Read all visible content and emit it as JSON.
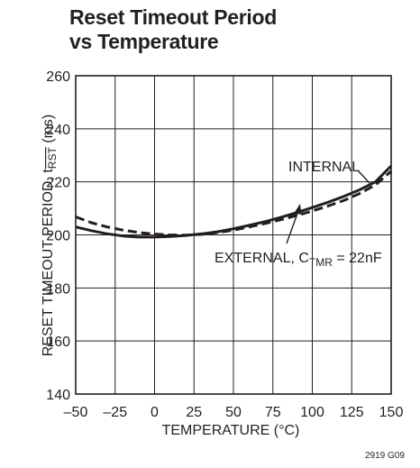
{
  "chart_data": {
    "type": "line",
    "title_line1": "Reset Timeout Period",
    "title_line2": "vs Temperature",
    "xlabel": "TEMPERATURE (°C)",
    "ylabel_prefix": "RESET TIMEOUT PERIOD, t",
    "ylabel_sub": "RST",
    "ylabel_suffix": " (ms)",
    "xlim": [
      -50,
      150
    ],
    "ylim": [
      140,
      260
    ],
    "x_ticks": [
      "–50",
      "–25",
      "0",
      "25",
      "50",
      "75",
      "100",
      "125",
      "150"
    ],
    "y_ticks": [
      "140",
      "160",
      "180",
      "200",
      "220",
      "240",
      "260"
    ],
    "grid": true,
    "legend": "none",
    "series": [
      {
        "name": "INTERNAL",
        "style": "solid",
        "x": [
          -50,
          -40,
          -30,
          -20,
          -10,
          0,
          10,
          20,
          30,
          40,
          50,
          60,
          70,
          80,
          90,
          100,
          110,
          120,
          130,
          140,
          150
        ],
        "y": [
          203.0,
          201.6,
          200.4,
          199.6,
          199.2,
          199.2,
          199.4,
          199.8,
          200.4,
          201.2,
          202.3,
          203.6,
          205.0,
          206.6,
          208.4,
          210.3,
          212.3,
          214.5,
          217.0,
          220.0,
          226.0
        ]
      },
      {
        "name": "EXTERNAL, C",
        "name_sub": "TMR",
        "name_suffix": " = 22nF",
        "style": "dashed",
        "x": [
          -50,
          -40,
          -30,
          -20,
          -10,
          0,
          10,
          20,
          30,
          40,
          50,
          60,
          70,
          80,
          90,
          100,
          110,
          120,
          130,
          140,
          150
        ],
        "y": [
          206.8,
          204.6,
          203.0,
          201.8,
          200.9,
          200.3,
          200.0,
          199.9,
          200.2,
          200.9,
          201.8,
          203.0,
          204.3,
          205.7,
          207.3,
          209.0,
          210.9,
          213.0,
          215.6,
          218.8,
          224.0
        ]
      }
    ],
    "figure_id": "2919 G09"
  }
}
